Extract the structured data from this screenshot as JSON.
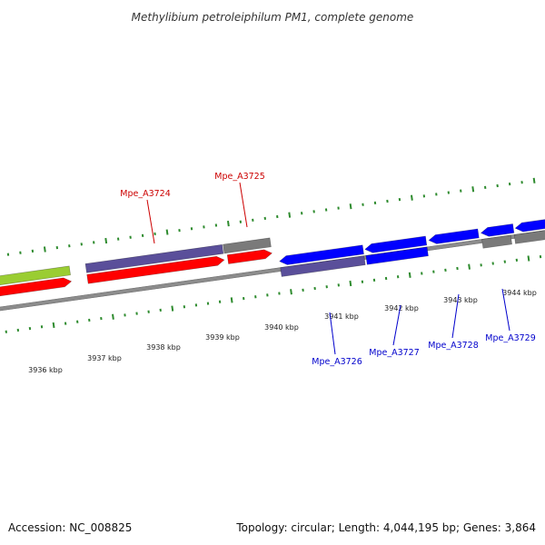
{
  "title": "Methylibium petroleiphilum PM1, complete genome",
  "footer": {
    "accession": "Accession: NC_008825",
    "summary": "Topology: circular; Length: 4,044,195 bp; Genes: 3,864"
  },
  "colors": {
    "backbone": "#8c8c8c",
    "tick": "#2e8b2e",
    "forward_cds": "#ff0000",
    "forward_gene": "#5a4f9a",
    "reverse_cds": "#0000ff",
    "reverse_gene": "#5a4f9a",
    "other_gene": "#7a7a7a",
    "highlight_gene": "#9acd32",
    "label_forward": "#cc0000",
    "label_reverse": "#0000cc"
  },
  "kbp_ticks": [
    {
      "label": "3936 kbp"
    },
    {
      "label": "3937 kbp"
    },
    {
      "label": "3938 kbp"
    },
    {
      "label": "3939 kbp"
    },
    {
      "label": "3940 kbp"
    },
    {
      "label": "3941 kbp"
    },
    {
      "label": "3942 kbp"
    },
    {
      "label": "3943 kbp"
    },
    {
      "label": "3944 kbp"
    }
  ],
  "gene_labels": [
    {
      "name": "Mpe_A3724",
      "strand": "forward"
    },
    {
      "name": "Mpe_A3725",
      "strand": "forward"
    },
    {
      "name": "Mpe_A3726",
      "strand": "reverse"
    },
    {
      "name": "Mpe_A3727",
      "strand": "reverse"
    },
    {
      "name": "Mpe_A3728",
      "strand": "reverse"
    },
    {
      "name": "Mpe_A3729",
      "strand": "reverse"
    }
  ]
}
